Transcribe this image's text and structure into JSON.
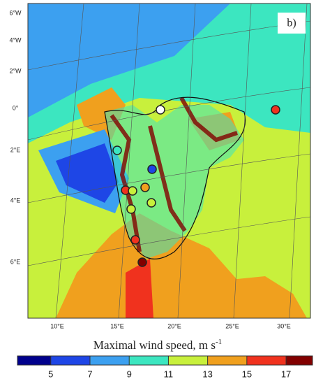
{
  "panel_label": "b)",
  "left_labels": [
    "6°W",
    "4°W",
    "2°W",
    "0°",
    "2°E",
    "4°E",
    "6°E"
  ],
  "bottom_labels": [
    "10°E",
    "15°E",
    "20°E",
    "25°E",
    "30°E"
  ],
  "colorbar": {
    "title": "Maximal wind speed, m s",
    "title_sup": "-1",
    "range": [
      3.3,
      18.35
    ],
    "ticks": [
      5,
      7,
      9,
      11,
      13,
      15,
      17
    ],
    "colors": [
      "#00008c",
      "#1e46e6",
      "#3ca0f0",
      "#3ce6c0",
      "#c8f03c",
      "#f0a01e",
      "#f0321e",
      "#820000"
    ]
  }
}
